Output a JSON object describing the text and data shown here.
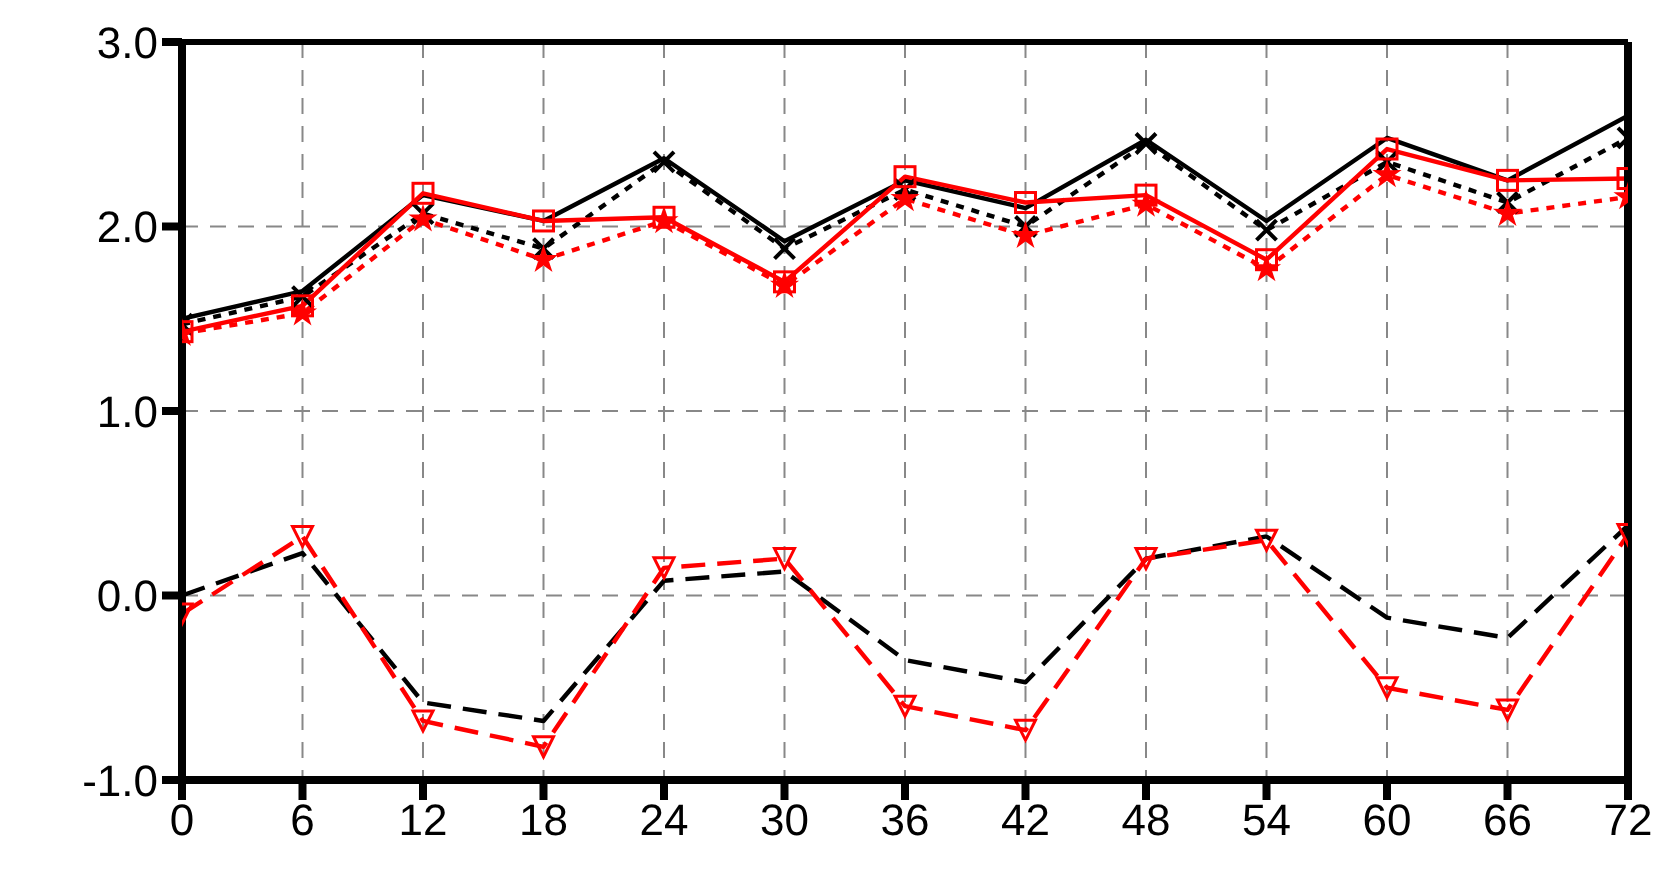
{
  "chart_data": {
    "type": "line",
    "x": [
      0,
      6,
      12,
      18,
      24,
      30,
      36,
      42,
      48,
      54,
      60,
      66,
      72
    ],
    "series": [
      {
        "color": "#000000",
        "line_style": "solid",
        "marker": "none",
        "values": [
          1.5,
          1.65,
          2.17,
          2.03,
          2.37,
          1.92,
          2.25,
          2.1,
          2.47,
          2.03,
          2.48,
          2.25,
          2.6
        ]
      },
      {
        "color": "#000000",
        "line_style": "dotted",
        "marker": "cross",
        "values": [
          1.47,
          1.62,
          2.07,
          1.88,
          2.35,
          1.88,
          2.2,
          2.0,
          2.45,
          1.98,
          2.35,
          2.13,
          2.48
        ]
      },
      {
        "color": "#ff0000",
        "line_style": "solid",
        "marker": "square",
        "values": [
          1.43,
          1.57,
          2.18,
          2.03,
          2.05,
          1.7,
          2.27,
          2.13,
          2.17,
          1.82,
          2.42,
          2.25,
          2.26
        ]
      },
      {
        "color": "#ff0000",
        "line_style": "dotted",
        "marker": "star",
        "values": [
          1.42,
          1.53,
          2.04,
          1.82,
          2.03,
          1.68,
          2.15,
          1.95,
          2.12,
          1.77,
          2.28,
          2.07,
          2.16
        ]
      },
      {
        "color": "#000000",
        "line_style": "dashed",
        "marker": "none",
        "values": [
          0.0,
          0.23,
          -0.58,
          -0.68,
          0.08,
          0.13,
          -0.35,
          -0.47,
          0.2,
          0.32,
          -0.12,
          -0.23,
          0.38
        ]
      },
      {
        "color": "#ff0000",
        "line_style": "dashed",
        "marker": "triangle",
        "values": [
          -0.1,
          0.32,
          -0.68,
          -0.82,
          0.15,
          0.2,
          -0.6,
          -0.73,
          0.2,
          0.3,
          -0.5,
          -0.62,
          0.33
        ]
      }
    ],
    "xlim": [
      0,
      72
    ],
    "xticks": [
      0,
      6,
      12,
      18,
      24,
      30,
      36,
      42,
      48,
      54,
      60,
      66,
      72
    ],
    "ylim": [
      -1,
      3
    ],
    "yticks": [
      {
        "value": -1,
        "label": "-1.0"
      },
      {
        "value": 0,
        "label": "0.0"
      },
      {
        "value": 1,
        "label": "1.0"
      },
      {
        "value": 2,
        "label": "2.0"
      },
      {
        "value": 3,
        "label": "3.0"
      }
    ],
    "grid": true
  }
}
